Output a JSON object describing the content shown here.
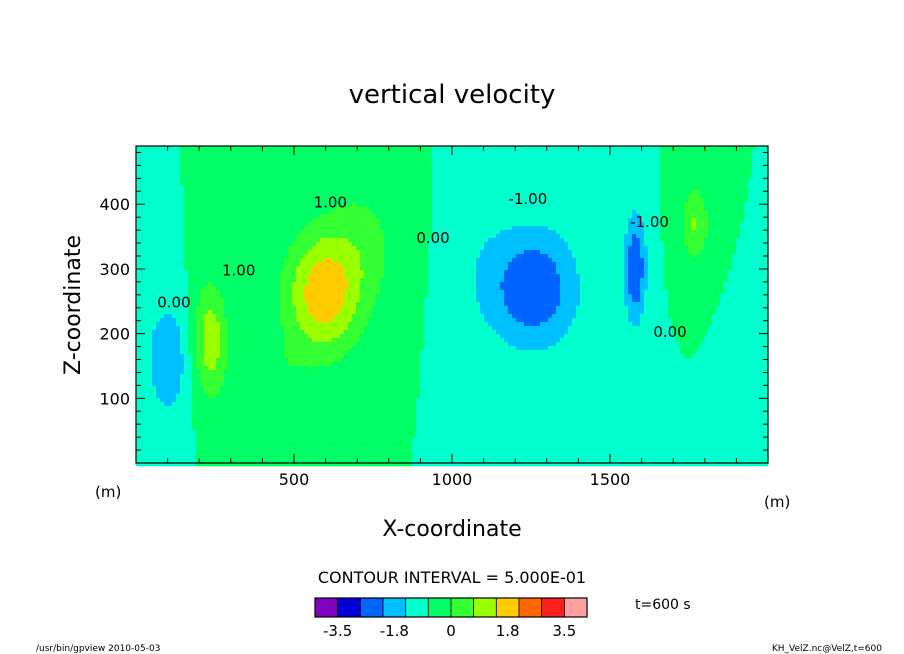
{
  "chart_data": {
    "type": "heatmap",
    "title": "vertical velocity",
    "xlabel": "X-coordinate",
    "ylabel": "Z-coordinate",
    "x_unit": "(m)",
    "y_unit": "(m)",
    "xlim": [
      0,
      2000
    ],
    "ylim": [
      0,
      490
    ],
    "x_ticks": [
      500,
      1000,
      1500
    ],
    "y_ticks": [
      100,
      200,
      300,
      400
    ],
    "grid": false,
    "contour_interval_label": "CONTOUR INTERVAL = 5.000E-01",
    "time_label": "t=600 s",
    "contour_labels": [
      {
        "text": "0.00",
        "x": 120,
        "y": 240
      },
      {
        "text": "1.00",
        "x": 325,
        "y": 290
      },
      {
        "text": "1.00",
        "x": 615,
        "y": 395
      },
      {
        "text": "0.00",
        "x": 940,
        "y": 340
      },
      {
        "text": "-1.00",
        "x": 1240,
        "y": 400
      },
      {
        "text": "-1.00",
        "x": 1625,
        "y": 365
      },
      {
        "text": "0.00",
        "x": 1690,
        "y": 195
      }
    ],
    "colorbar": {
      "tick_labels": [
        "-3.5",
        "-1.8",
        "0",
        "1.8",
        "3.5"
      ],
      "ticks": [
        -3.5,
        -1.75,
        0,
        1.75,
        3.5
      ],
      "range": [
        -3.5,
        3.5
      ],
      "colors": [
        "#7f00bf",
        "#0000d8",
        "#0066ff",
        "#00bfff",
        "#00ffcc",
        "#00ff66",
        "#33ff33",
        "#99ff00",
        "#ffcc00",
        "#ff6600",
        "#ff2020",
        "#ffa0a0"
      ]
    },
    "features": [
      {
        "x": 100,
        "z": 160,
        "amp": -1.6,
        "sx": 70,
        "sz": 90
      },
      {
        "x": 235,
        "z": 190,
        "amp": 2.3,
        "sx": 55,
        "sz": 90
      },
      {
        "x": 590,
        "z": 260,
        "amp": 3.1,
        "sx": 120,
        "sz": 95
      },
      {
        "x": 720,
        "z": 340,
        "amp": 1.0,
        "sx": 130,
        "sz": 110
      },
      {
        "x": 430,
        "z": 130,
        "amp": 0.7,
        "sx": 110,
        "sz": 60
      },
      {
        "x": 1260,
        "z": 270,
        "amp": -2.5,
        "sx": 140,
        "sz": 95
      },
      {
        "x": 1080,
        "z": 300,
        "amp": -0.5,
        "sx": 110,
        "sz": 120
      },
      {
        "x": 1580,
        "z": 300,
        "amp": -2.6,
        "sx": 35,
        "sz": 85
      },
      {
        "x": 1770,
        "z": 370,
        "amp": 1.8,
        "sx": 45,
        "sz": 60
      },
      {
        "x": 1960,
        "z": 130,
        "amp": -0.7,
        "sx": 60,
        "sz": 80
      }
    ]
  },
  "footer": {
    "left": "/usr/bin/gpview   2010-05-03",
    "right": "KH_VelZ.nc@VelZ,t=600"
  }
}
